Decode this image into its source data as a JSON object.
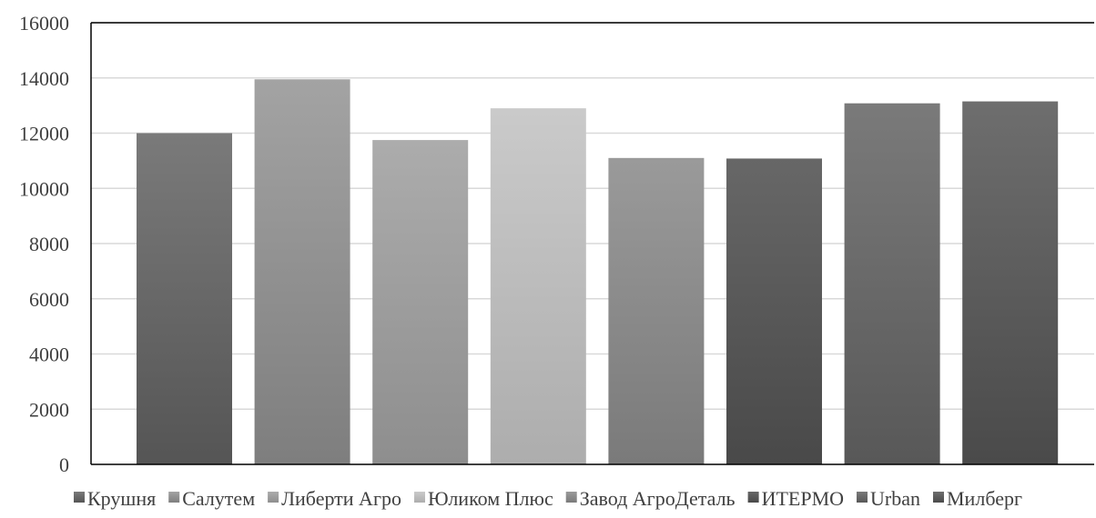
{
  "chart_data": {
    "type": "bar",
    "title": "",
    "xlabel": "",
    "ylabel": "",
    "ylim": [
      0,
      16000
    ],
    "y_ticks": [
      0,
      2000,
      4000,
      6000,
      8000,
      10000,
      12000,
      14000,
      16000
    ],
    "grid": true,
    "legend_position": "bottom",
    "series": [
      {
        "name": "Крушня",
        "value": 12000,
        "color_top": "#7a7a7a",
        "color_bottom": "#555555"
      },
      {
        "name": "Салутем",
        "value": 13950,
        "color_top": "#a3a3a3",
        "color_bottom": "#7e7e7e"
      },
      {
        "name": "Либерти Агро",
        "value": 11750,
        "color_top": "#acacac",
        "color_bottom": "#8e8e8e"
      },
      {
        "name": "Юликом Плюс",
        "value": 12900,
        "color_top": "#cacaca",
        "color_bottom": "#adadad"
      },
      {
        "name": "Завод АгроДеталь",
        "value": 11100,
        "color_top": "#9a9a9a",
        "color_bottom": "#7a7a7a"
      },
      {
        "name": "ИТЕРМО",
        "value": 11080,
        "color_top": "#676767",
        "color_bottom": "#494949"
      },
      {
        "name": "Urban",
        "value": 13080,
        "color_top": "#7a7a7a",
        "color_bottom": "#585858"
      },
      {
        "name": "Милберг",
        "value": 13150,
        "color_top": "#6e6e6e",
        "color_bottom": "#4a4a4a"
      }
    ]
  }
}
